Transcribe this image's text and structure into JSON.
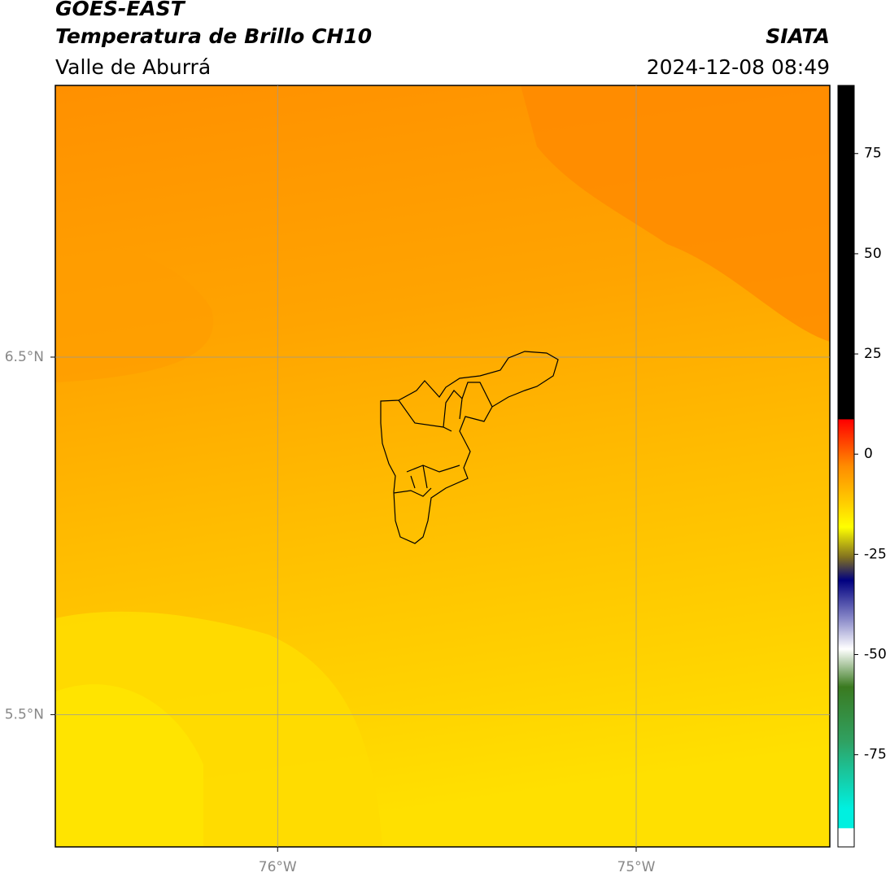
{
  "header": {
    "title": "GOES-EAST",
    "subtitle": "Temperatura de Brillo CH10",
    "source": "SIATA",
    "region": "Valle de Aburrá",
    "datetime": "2024-12-08 08:49"
  },
  "chart_data": {
    "type": "map",
    "xlim": [
      -76.62,
      -74.46
    ],
    "ylim": [
      5.13,
      7.26
    ],
    "xticks": [
      {
        "value": -76,
        "label": "76°W"
      },
      {
        "value": -75,
        "label": "75°W"
      }
    ],
    "yticks": [
      {
        "value": 6.5,
        "label": "6.5°N"
      },
      {
        "value": 5.5,
        "label": "5.5°N"
      }
    ],
    "grid": true,
    "colorbar": {
      "lim": [
        -98,
        92
      ],
      "ticks": [
        75,
        50,
        25,
        0,
        -25,
        -50,
        -75
      ]
    }
  }
}
